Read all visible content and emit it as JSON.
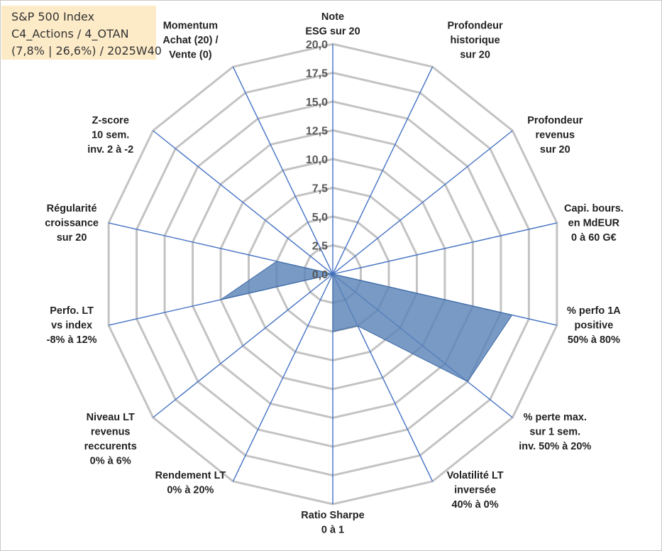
{
  "info": {
    "line1": "S&P 500 Index",
    "line2": "C4_Actions / 4_OTAN",
    "line3": "(7,8% | 26,6%) / 2025W40"
  },
  "chart_data": {
    "type": "radar",
    "title": "",
    "rmax": 20,
    "rmin": 0,
    "grid": true,
    "ticks": [
      "0,0",
      "2,5",
      "5,0",
      "7,5",
      "10,0",
      "12,5",
      "15,0",
      "17,5",
      "20,0"
    ],
    "tick_values": [
      0,
      2.5,
      5,
      7.5,
      10,
      12.5,
      15,
      17.5,
      20
    ],
    "categories": [
      [
        "Note",
        "ESG sur 20"
      ],
      [
        "Profondeur",
        "historique",
        "sur 20"
      ],
      [
        "Profondeur",
        "revenus",
        "sur 20"
      ],
      [
        "Capi. bours.",
        "en MdEUR",
        "0 à 60 G€"
      ],
      [
        "% perfo 1A",
        "positive",
        "50% à 80%"
      ],
      [
        "% perte max.",
        "sur 1 sem.",
        "inv. 50% à 20%"
      ],
      [
        "Volatilité LT",
        "inversée",
        "40% à 0%"
      ],
      [
        "Ratio Sharpe",
        "0 à 1"
      ],
      [
        "Rendement LT",
        "0% à 20%"
      ],
      [
        "Niveau LT",
        "revenus",
        "reccurents",
        "0% à 6%"
      ],
      [
        "Perfo. LT",
        "vs index",
        "-8% à 12%"
      ],
      [
        "Régularité",
        "croissance",
        "sur 20"
      ],
      [
        "Z-score",
        "10 sem.",
        "inv. 2 à -2"
      ],
      [
        "Momentum",
        "Achat (20) /",
        "Vente (0)"
      ]
    ],
    "series": [
      {
        "values": [
          0,
          0,
          0,
          0,
          16,
          15,
          5,
          5,
          0,
          0,
          10,
          5,
          0,
          0
        ],
        "color": "#4f7fb8"
      }
    ],
    "colors": {
      "fill": "#5a84b8",
      "fill_opacity": "0.82",
      "spoke": "#4472c4",
      "grid": "#c3c3c3"
    }
  }
}
